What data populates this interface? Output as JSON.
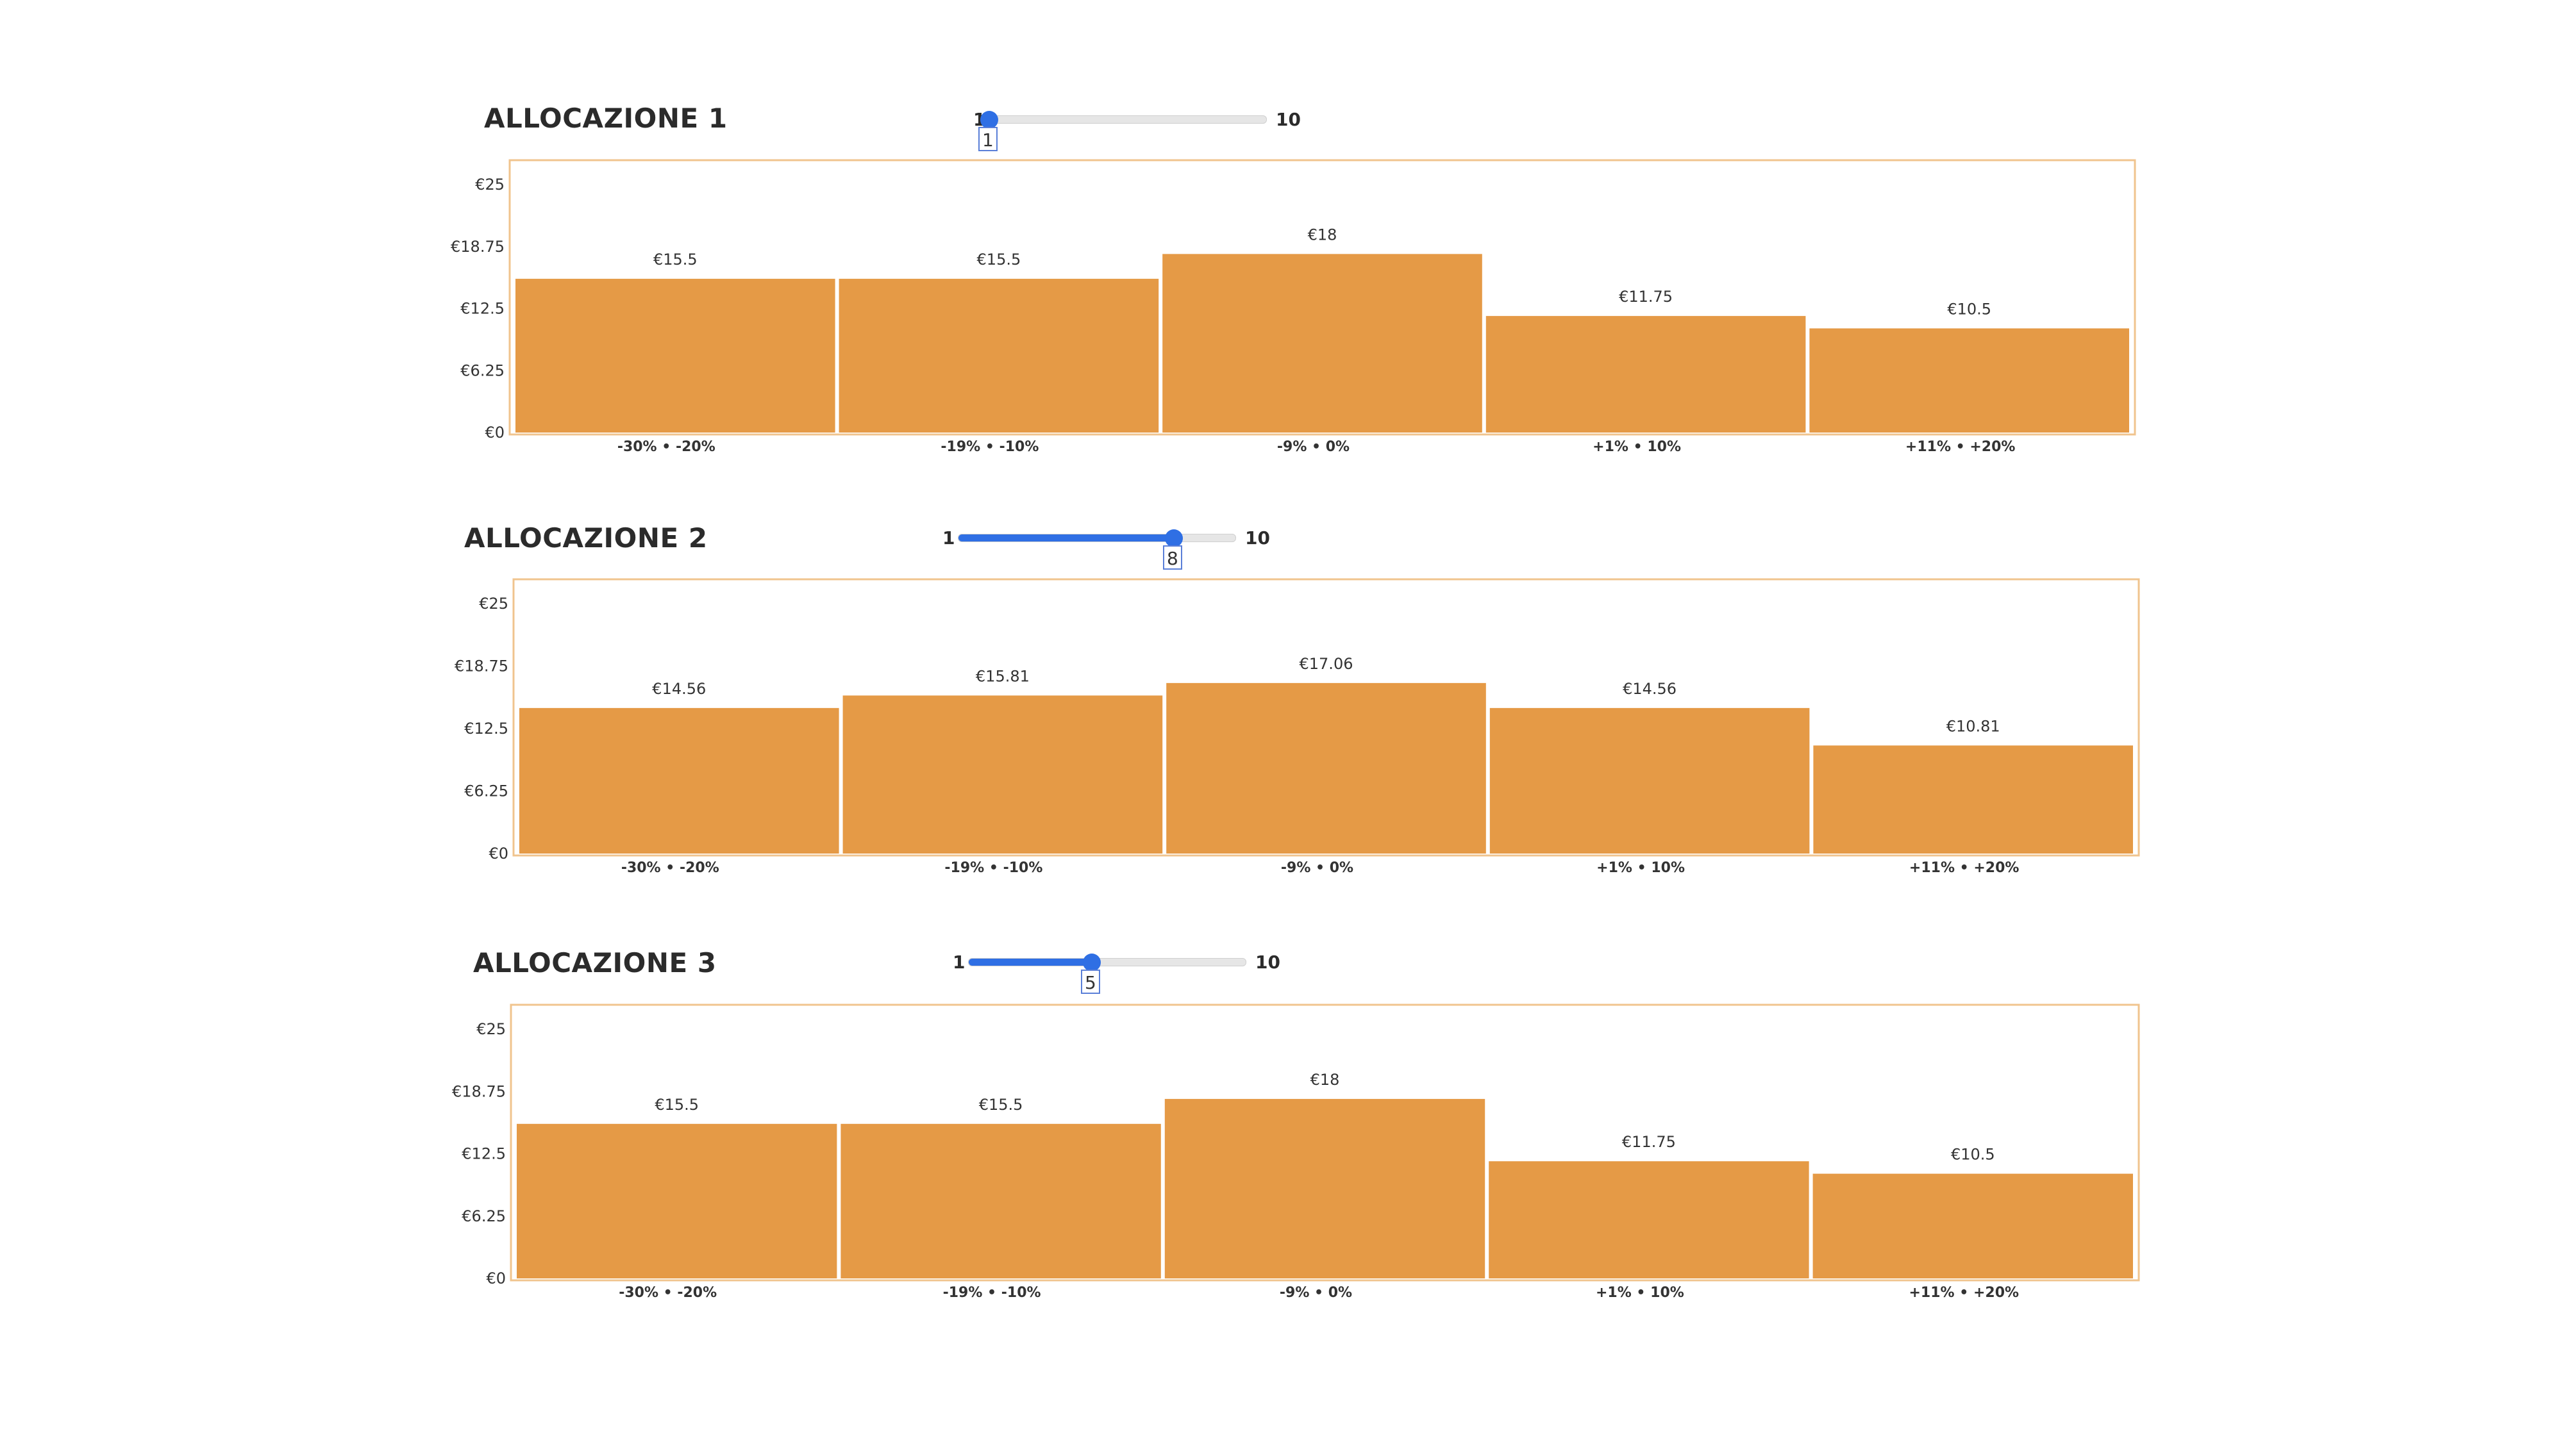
{
  "colors": {
    "bar": "#e59a46",
    "frame": "#f0c48e",
    "slider_accent": "#2f6fe4"
  },
  "sections": [
    {
      "title": "ALLOCAZIONE 1",
      "slider": {
        "min_label": "1",
        "max_label": "10",
        "min": 1,
        "max": 10,
        "value": 1,
        "value_label": "1"
      }
    },
    {
      "title": "ALLOCAZIONE 2",
      "slider": {
        "min_label": "1",
        "max_label": "10",
        "min": 1,
        "max": 10,
        "value": 8,
        "value_label": "8"
      }
    },
    {
      "title": "ALLOCAZIONE 3",
      "slider": {
        "min_label": "1",
        "max_label": "10",
        "min": 1,
        "max": 10,
        "value": 5,
        "value_label": "5"
      }
    }
  ],
  "chart_data": [
    {
      "type": "bar",
      "title": "ALLOCAZIONE 1",
      "categories": [
        "-30% • -20%",
        "-19% • -10%",
        "-9% • 0%",
        "+1% • 10%",
        "+11% • +20%"
      ],
      "values": [
        15.5,
        15.5,
        18,
        11.75,
        10.5
      ],
      "data_labels": [
        "€15.5",
        "€15.5",
        "€18",
        "€11.75",
        "€10.5"
      ],
      "y_ticks": [
        0,
        6.25,
        12.5,
        18.75,
        25
      ],
      "y_tick_labels": [
        "€0",
        "€6.25",
        "€12.5",
        "€18.75",
        "€25"
      ],
      "ylim": [
        0,
        25
      ],
      "grid": false,
      "legend": "none"
    },
    {
      "type": "bar",
      "title": "ALLOCAZIONE 2",
      "categories": [
        "-30% • -20%",
        "-19% • -10%",
        "-9% • 0%",
        "+1% • 10%",
        "+11% • +20%"
      ],
      "values": [
        14.56,
        15.81,
        17.06,
        14.56,
        10.81
      ],
      "data_labels": [
        "€14.56",
        "€15.81",
        "€17.06",
        "€14.56",
        "€10.81"
      ],
      "y_ticks": [
        0,
        6.25,
        12.5,
        18.75,
        25
      ],
      "y_tick_labels": [
        "€0",
        "€6.25",
        "€12.5",
        "€18.75",
        "€25"
      ],
      "ylim": [
        0,
        25
      ],
      "grid": false,
      "legend": "none"
    },
    {
      "type": "bar",
      "title": "ALLOCAZIONE 3",
      "categories": [
        "-30% • -20%",
        "-19% • -10%",
        "-9% • 0%",
        "+1% • 10%",
        "+11% • +20%"
      ],
      "values": [
        15.5,
        15.5,
        18,
        11.75,
        10.5
      ],
      "data_labels": [
        "€15.5",
        "€15.5",
        "€18",
        "€11.75",
        "€10.5"
      ],
      "y_ticks": [
        0,
        6.25,
        12.5,
        18.75,
        25
      ],
      "y_tick_labels": [
        "€0",
        "€6.25",
        "€12.5",
        "€18.75",
        "€25"
      ],
      "ylim": [
        0,
        25
      ],
      "grid": false,
      "legend": "none"
    }
  ]
}
